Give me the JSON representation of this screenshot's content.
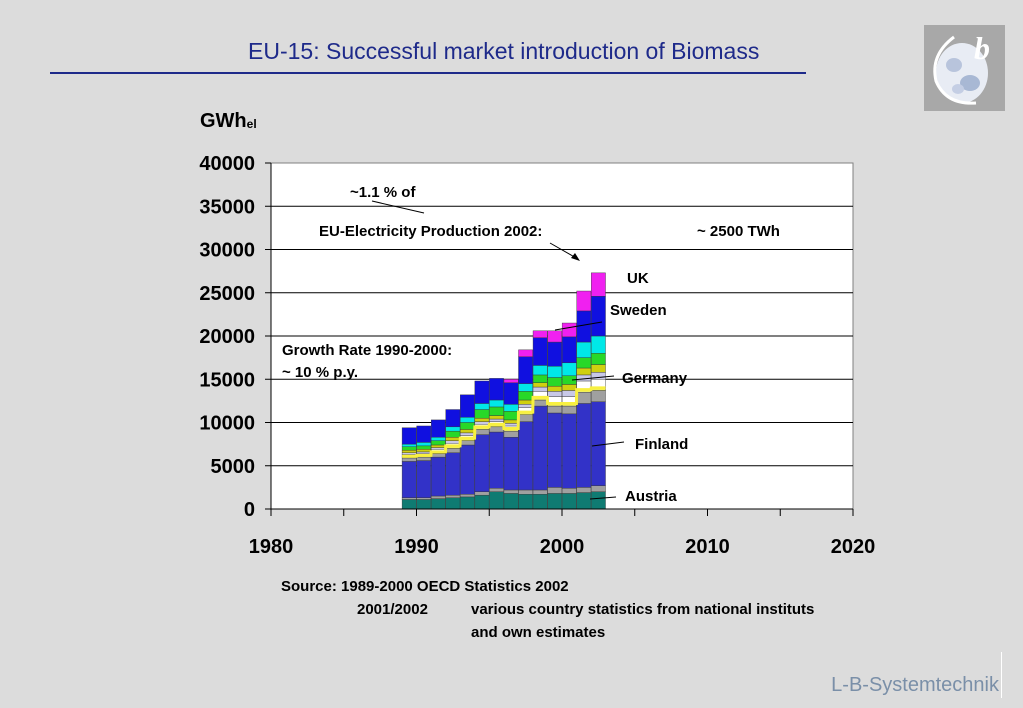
{
  "slide": {
    "title": "EU-15: Successful market introduction of Biomass",
    "unit_main": "GWh",
    "unit_sub": "el",
    "brand": "L-B-Systemtechnik",
    "logo_letter": "b"
  },
  "annotations": {
    "share_line1": "~1.1 % of",
    "share_line2": "EU-Electricity Production 2002:",
    "share_value": "~ 2500 TWh",
    "growth_line1": "Growth Rate 1990-2000:",
    "growth_line2": "~ 10 % p.y."
  },
  "country_labels": {
    "uk": "UK",
    "sweden": "Sweden",
    "germany": "Germany",
    "finland": "Finland",
    "austria": "Austria"
  },
  "source": {
    "line1": "Source: 1989-2000 OECD Statistics 2002",
    "line2_years": "2001/2002",
    "line2_text": "various country statistics from national instituts",
    "line3": "and own estimates"
  },
  "chart_data": {
    "type": "bar",
    "stacked": true,
    "xlim": [
      1980,
      2020
    ],
    "ylim": [
      0,
      40000
    ],
    "x_ticks": [
      1980,
      1990,
      2000,
      2010,
      2020
    ],
    "y_ticks": [
      0,
      5000,
      10000,
      15000,
      20000,
      25000,
      30000,
      35000,
      40000
    ],
    "grid": "horizontal",
    "categories": [
      1989,
      1990,
      1991,
      1992,
      1993,
      1994,
      1995,
      1996,
      1997,
      1998,
      1999,
      2000,
      2001,
      2002
    ],
    "series": [
      {
        "name": "Austria",
        "color": "#0f7b72",
        "values": [
          1100,
          1100,
          1200,
          1300,
          1400,
          1600,
          2000,
          1800,
          1700,
          1700,
          1800,
          1800,
          1900,
          2000
        ]
      },
      {
        "name": "",
        "color": "#a0a0a0",
        "values": [
          200,
          200,
          300,
          300,
          300,
          400,
          400,
          400,
          500,
          500,
          700,
          600,
          600,
          700
        ]
      },
      {
        "name": "Finland",
        "color": "#3232c8",
        "values": [
          4200,
          4300,
          4500,
          4900,
          5700,
          6600,
          6500,
          6100,
          7900,
          9700,
          8600,
          8600,
          9700,
          9700
        ]
      },
      {
        "name": "",
        "color": "#a0a0a0",
        "values": [
          400,
          400,
          400,
          500,
          500,
          600,
          600,
          700,
          800,
          700,
          800,
          900,
          1300,
          1300
        ]
      },
      {
        "name": "Germany",
        "color": "#f0f060",
        "values": [
          200,
          200,
          200,
          300,
          300,
          300,
          300,
          300,
          300,
          300,
          300,
          300,
          300,
          300
        ]
      },
      {
        "name": "",
        "color": "#ffffff",
        "values": [
          200,
          200,
          300,
          300,
          300,
          300,
          300,
          300,
          500,
          700,
          800,
          800,
          1000,
          1000
        ]
      },
      {
        "name": "",
        "color": "#c8c8e8",
        "values": [
          200,
          200,
          200,
          300,
          300,
          300,
          300,
          300,
          400,
          500,
          600,
          700,
          700,
          800
        ]
      },
      {
        "name": "",
        "color": "#d0d010",
        "values": [
          300,
          300,
          300,
          400,
          400,
          400,
          400,
          400,
          500,
          500,
          600,
          700,
          800,
          900
        ]
      },
      {
        "name": "",
        "color": "#28d828",
        "values": [
          400,
          400,
          500,
          700,
          800,
          1000,
          1000,
          1000,
          1000,
          900,
          1000,
          1000,
          1200,
          1300
        ]
      },
      {
        "name": "",
        "color": "#00e8e8",
        "values": [
          300,
          400,
          400,
          500,
          600,
          700,
          800,
          800,
          900,
          1100,
          1300,
          1500,
          1800,
          2000
        ]
      },
      {
        "name": "Sweden",
        "color": "#1010e0",
        "values": [
          1900,
          1900,
          2000,
          2000,
          2600,
          2600,
          2500,
          2500,
          3100,
          3200,
          2800,
          3000,
          3600,
          4600
        ]
      },
      {
        "name": "UK",
        "color": "#f020f0",
        "values": [
          0,
          0,
          0,
          0,
          0,
          0,
          0,
          400,
          800,
          800,
          1300,
          1600,
          2300,
          2700
        ]
      }
    ]
  }
}
